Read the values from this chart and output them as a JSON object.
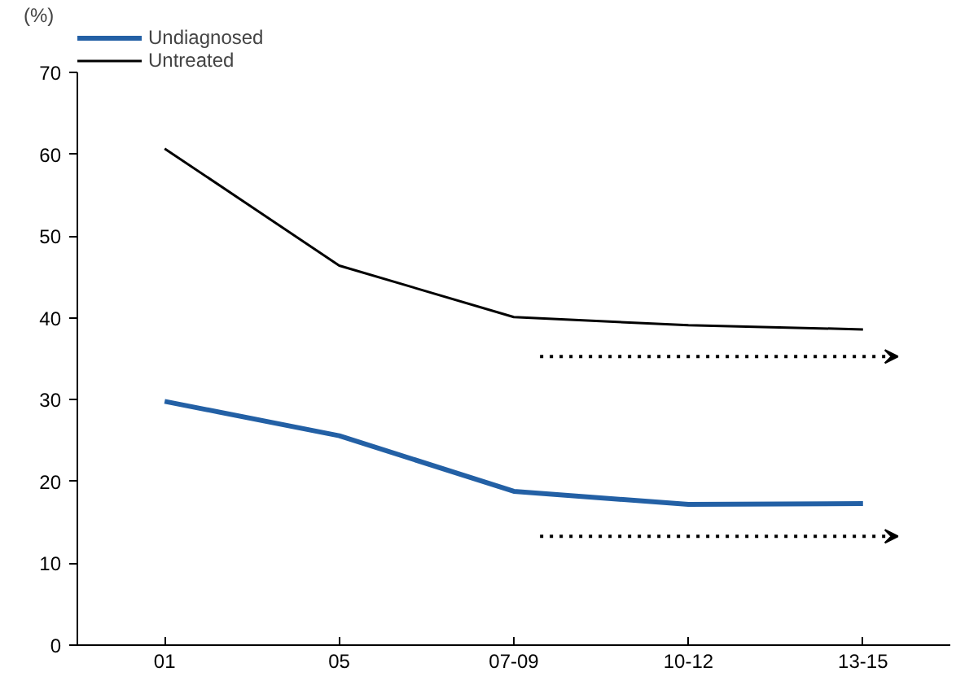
{
  "chart_data": {
    "type": "line",
    "ylabel": "(%)",
    "categories": [
      "01",
      "05",
      "07-09",
      "10-12",
      "13-15"
    ],
    "series": [
      {
        "name": "Undiagnosed",
        "color": "#2360a5",
        "values": [
          29.8,
          25.6,
          18.8,
          17.2,
          17.3
        ]
      },
      {
        "name": "Untreated",
        "color": "#000000",
        "values": [
          60.7,
          46.4,
          40.1,
          39.1,
          38.6
        ]
      }
    ],
    "ylim": [
      0,
      70
    ],
    "yticks": [
      0,
      10,
      20,
      30,
      40,
      50,
      60,
      70
    ],
    "grid": false,
    "legend": "top left",
    "marker": "none",
    "line_style": "solid"
  }
}
